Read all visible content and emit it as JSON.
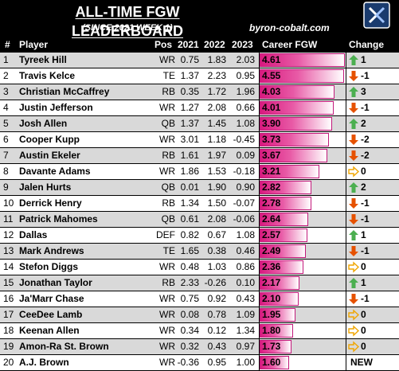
{
  "header": {
    "title": "ALL-TIME FGW LEADERBOARD",
    "subtitle": "(SINCE 2021 WEEK 1)",
    "site": "byron-cobalt.com"
  },
  "columns": {
    "rank": "#",
    "player": "Player",
    "pos": "Pos",
    "y2021": "2021",
    "y2022": "2022",
    "y2023": "2023",
    "career": "Career FGW",
    "change": "Change"
  },
  "colors": {
    "bar_start": "#ffffff",
    "bar_end": "#d81b7f",
    "up": "#4caf50",
    "down": "#e65100",
    "same": "#f0a500"
  },
  "rows": [
    {
      "rank": "1",
      "player": "Tyreek Hill",
      "pos": "WR",
      "y2021": "0.75",
      "y2022": "1.83",
      "y2023": "2.03",
      "career": "4.61",
      "career_value": 4.61,
      "change_dir": "up",
      "change": "1"
    },
    {
      "rank": "2",
      "player": "Travis Kelce",
      "pos": "TE",
      "y2021": "1.37",
      "y2022": "2.23",
      "y2023": "0.95",
      "career": "4.55",
      "career_value": 4.55,
      "change_dir": "down",
      "change": "-1"
    },
    {
      "rank": "3",
      "player": "Christian McCaffrey",
      "pos": "RB",
      "y2021": "0.35",
      "y2022": "1.72",
      "y2023": "1.96",
      "career": "4.03",
      "career_value": 4.03,
      "change_dir": "up",
      "change": "3"
    },
    {
      "rank": "4",
      "player": "Justin Jefferson",
      "pos": "WR",
      "y2021": "1.27",
      "y2022": "2.08",
      "y2023": "0.66",
      "career": "4.01",
      "career_value": 4.01,
      "change_dir": "down",
      "change": "-1"
    },
    {
      "rank": "5",
      "player": "Josh Allen",
      "pos": "QB",
      "y2021": "1.37",
      "y2022": "1.45",
      "y2023": "1.08",
      "career": "3.90",
      "career_value": 3.9,
      "change_dir": "up",
      "change": "2"
    },
    {
      "rank": "6",
      "player": "Cooper Kupp",
      "pos": "WR",
      "y2021": "3.01",
      "y2022": "1.18",
      "y2023": "-0.45",
      "career": "3.73",
      "career_value": 3.73,
      "change_dir": "down",
      "change": "-2"
    },
    {
      "rank": "7",
      "player": "Austin Ekeler",
      "pos": "RB",
      "y2021": "1.61",
      "y2022": "1.97",
      "y2023": "0.09",
      "career": "3.67",
      "career_value": 3.67,
      "change_dir": "down",
      "change": "-2"
    },
    {
      "rank": "8",
      "player": "Davante Adams",
      "pos": "WR",
      "y2021": "1.86",
      "y2022": "1.53",
      "y2023": "-0.18",
      "career": "3.21",
      "career_value": 3.21,
      "change_dir": "same",
      "change": "0"
    },
    {
      "rank": "9",
      "player": "Jalen Hurts",
      "pos": "QB",
      "y2021": "0.01",
      "y2022": "1.90",
      "y2023": "0.90",
      "career": "2.82",
      "career_value": 2.82,
      "change_dir": "up",
      "change": "2"
    },
    {
      "rank": "10",
      "player": "Derrick Henry",
      "pos": "RB",
      "y2021": "1.34",
      "y2022": "1.50",
      "y2023": "-0.07",
      "career": "2.78",
      "career_value": 2.78,
      "change_dir": "down",
      "change": "-1"
    },
    {
      "rank": "11",
      "player": "Patrick Mahomes",
      "pos": "QB",
      "y2021": "0.61",
      "y2022": "2.08",
      "y2023": "-0.06",
      "career": "2.64",
      "career_value": 2.64,
      "change_dir": "down",
      "change": "-1"
    },
    {
      "rank": "12",
      "player": "Dallas",
      "pos": "DEF",
      "y2021": "0.82",
      "y2022": "0.67",
      "y2023": "1.08",
      "career": "2.57",
      "career_value": 2.57,
      "change_dir": "up",
      "change": "1"
    },
    {
      "rank": "13",
      "player": "Mark Andrews",
      "pos": "TE",
      "y2021": "1.65",
      "y2022": "0.38",
      "y2023": "0.46",
      "career": "2.49",
      "career_value": 2.49,
      "change_dir": "down",
      "change": "-1"
    },
    {
      "rank": "14",
      "player": "Stefon Diggs",
      "pos": "WR",
      "y2021": "0.48",
      "y2022": "1.03",
      "y2023": "0.86",
      "career": "2.36",
      "career_value": 2.36,
      "change_dir": "same",
      "change": "0"
    },
    {
      "rank": "15",
      "player": "Jonathan Taylor",
      "pos": "RB",
      "y2021": "2.33",
      "y2022": "-0.26",
      "y2023": "0.10",
      "career": "2.17",
      "career_value": 2.17,
      "change_dir": "up",
      "change": "1"
    },
    {
      "rank": "16",
      "player": "Ja'Marr Chase",
      "pos": "WR",
      "y2021": "0.75",
      "y2022": "0.92",
      "y2023": "0.43",
      "career": "2.10",
      "career_value": 2.1,
      "change_dir": "down",
      "change": "-1"
    },
    {
      "rank": "17",
      "player": "CeeDee Lamb",
      "pos": "WR",
      "y2021": "0.08",
      "y2022": "0.78",
      "y2023": "1.09",
      "career": "1.95",
      "career_value": 1.95,
      "change_dir": "same",
      "change": "0"
    },
    {
      "rank": "18",
      "player": "Keenan Allen",
      "pos": "WR",
      "y2021": "0.34",
      "y2022": "0.12",
      "y2023": "1.34",
      "career": "1.80",
      "career_value": 1.8,
      "change_dir": "same",
      "change": "0"
    },
    {
      "rank": "19",
      "player": "Amon-Ra St. Brown",
      "pos": "WR",
      "y2021": "0.32",
      "y2022": "0.43",
      "y2023": "0.97",
      "career": "1.73",
      "career_value": 1.73,
      "change_dir": "same",
      "change": "0"
    },
    {
      "rank": "20",
      "player": "A.J. Brown",
      "pos": "WR",
      "y2021": "-0.36",
      "y2022": "0.95",
      "y2023": "1.00",
      "career": "1.60",
      "career_value": 1.6,
      "change_dir": "new",
      "change": "NEW"
    }
  ]
}
